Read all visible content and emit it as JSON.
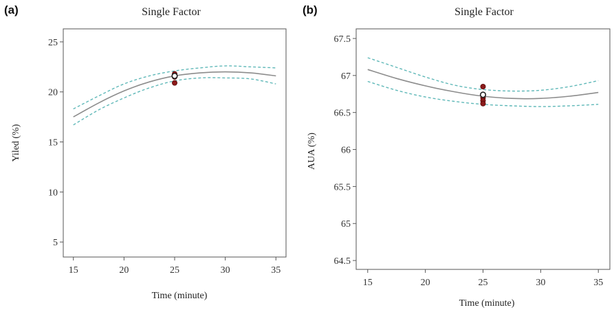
{
  "chart_data": [
    {
      "panel_label": "(a)",
      "type": "line",
      "title": "Single Factor",
      "xlabel": "Time (minute)",
      "ylabel": "Yiled (%)",
      "xlim": [
        14,
        36
      ],
      "ylim": [
        3.5,
        26.3
      ],
      "xticks": [
        15,
        20,
        25,
        30,
        35
      ],
      "yticks": [
        5,
        10,
        15,
        20,
        25
      ],
      "ytick_labels": [
        "5",
        "10",
        "15",
        "20",
        "25"
      ],
      "series": [
        {
          "role": "fit",
          "x": [
            15,
            17.5,
            20,
            22.5,
            25,
            27.5,
            30,
            32.5,
            35
          ],
          "values": [
            17.5,
            18.9,
            20.1,
            21.0,
            21.6,
            21.9,
            22.0,
            21.9,
            21.6
          ]
        },
        {
          "role": "upper-ci",
          "x": [
            15,
            17.5,
            20,
            22.5,
            25,
            27.5,
            30,
            32.5,
            35
          ],
          "values": [
            18.3,
            19.6,
            20.8,
            21.6,
            22.1,
            22.4,
            22.6,
            22.5,
            22.4
          ]
        },
        {
          "role": "lower-ci",
          "x": [
            15,
            17.5,
            20,
            22.5,
            25,
            27.5,
            30,
            32.5,
            35
          ],
          "values": [
            16.7,
            18.2,
            19.4,
            20.4,
            21.1,
            21.4,
            21.4,
            21.3,
            20.8
          ]
        }
      ],
      "points": {
        "x": [
          25,
          25,
          25,
          25
        ],
        "y": [
          21.6,
          21.8,
          21.5,
          20.9
        ]
      },
      "center_point": {
        "x": 25,
        "y": 21.6
      },
      "colors": {
        "fit": "#8c8c8c",
        "ci": "#5fb8b8",
        "points": "#8b1a1a"
      }
    },
    {
      "panel_label": "(b)",
      "type": "line",
      "title": "Single Factor",
      "xlabel": "Time (minute)",
      "ylabel": "AUA (%)",
      "xlim": [
        14,
        36
      ],
      "ylim": [
        64.38,
        67.63
      ],
      "xticks": [
        15,
        20,
        25,
        30,
        35
      ],
      "yticks": [
        64.5,
        65,
        65.5,
        66,
        66.5,
        67,
        67.5
      ],
      "ytick_labels": [
        "64.5",
        "65",
        "65.5",
        "66",
        "66.5",
        "67",
        "67.5"
      ],
      "series": [
        {
          "role": "fit",
          "x": [
            15,
            17.5,
            20,
            22.5,
            25,
            27.5,
            30,
            32.5,
            35
          ],
          "values": [
            67.08,
            66.96,
            66.86,
            66.78,
            66.72,
            66.69,
            66.69,
            66.72,
            66.77
          ]
        },
        {
          "role": "upper-ci",
          "x": [
            15,
            17.5,
            20,
            22.5,
            25,
            27.5,
            30,
            32.5,
            35
          ],
          "values": [
            67.24,
            67.11,
            66.98,
            66.87,
            66.81,
            66.79,
            66.8,
            66.85,
            66.93
          ]
        },
        {
          "role": "lower-ci",
          "x": [
            15,
            17.5,
            20,
            22.5,
            25,
            27.5,
            30,
            32.5,
            35
          ],
          "values": [
            66.92,
            66.8,
            66.71,
            66.65,
            66.61,
            66.59,
            66.58,
            66.59,
            66.61
          ]
        }
      ],
      "points": {
        "x": [
          25,
          25,
          25,
          25
        ],
        "y": [
          66.85,
          66.7,
          66.66,
          66.62
        ]
      },
      "center_point": {
        "x": 25,
        "y": 66.74
      },
      "colors": {
        "fit": "#8c8c8c",
        "ci": "#5fb8b8",
        "points": "#8b1a1a"
      }
    }
  ]
}
